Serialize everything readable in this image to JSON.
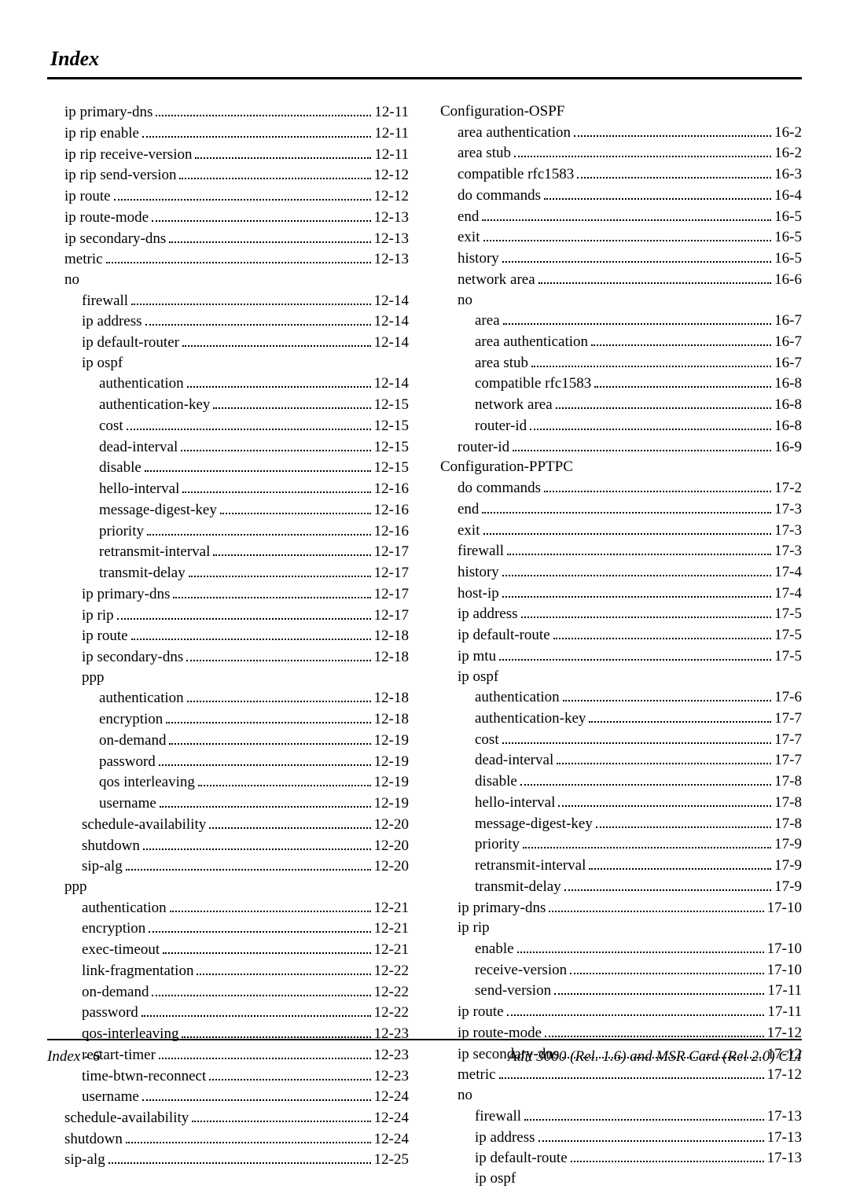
{
  "title": "Index",
  "footer_left": "Index - 6",
  "footer_right": "Adit 3000 (Rel. 1.6) and MSR Card (Rel 2.0) CLI",
  "left": [
    {
      "label": "ip primary-dns",
      "page": "12-11",
      "indent": 1,
      "heading": false
    },
    {
      "label": "ip rip enable",
      "page": "12-11",
      "indent": 1,
      "heading": false
    },
    {
      "label": "ip rip receive-version",
      "page": "12-11",
      "indent": 1,
      "heading": false
    },
    {
      "label": "ip rip send-version",
      "page": "12-12",
      "indent": 1,
      "heading": false
    },
    {
      "label": "ip route",
      "page": "12-12",
      "indent": 1,
      "heading": false
    },
    {
      "label": "ip route-mode",
      "page": "12-13",
      "indent": 1,
      "heading": false
    },
    {
      "label": "ip secondary-dns",
      "page": "12-13",
      "indent": 1,
      "heading": false
    },
    {
      "label": "metric",
      "page": "12-13",
      "indent": 1,
      "heading": false
    },
    {
      "label": "no",
      "page": "",
      "indent": 1,
      "heading": true
    },
    {
      "label": "firewall",
      "page": "12-14",
      "indent": 2,
      "heading": false
    },
    {
      "label": "ip address",
      "page": "12-14",
      "indent": 2,
      "heading": false
    },
    {
      "label": "ip default-router",
      "page": "12-14",
      "indent": 2,
      "heading": false
    },
    {
      "label": "ip ospf",
      "page": "",
      "indent": 2,
      "heading": true
    },
    {
      "label": "authentication",
      "page": "12-14",
      "indent": 3,
      "heading": false
    },
    {
      "label": "authentication-key",
      "page": "12-15",
      "indent": 3,
      "heading": false
    },
    {
      "label": "cost",
      "page": "12-15",
      "indent": 3,
      "heading": false
    },
    {
      "label": "dead-interval",
      "page": "12-15",
      "indent": 3,
      "heading": false
    },
    {
      "label": "disable",
      "page": "12-15",
      "indent": 3,
      "heading": false
    },
    {
      "label": "hello-interval",
      "page": "12-16",
      "indent": 3,
      "heading": false
    },
    {
      "label": "message-digest-key",
      "page": "12-16",
      "indent": 3,
      "heading": false
    },
    {
      "label": "priority",
      "page": "12-16",
      "indent": 3,
      "heading": false
    },
    {
      "label": "retransmit-interval",
      "page": "12-17",
      "indent": 3,
      "heading": false
    },
    {
      "label": "transmit-delay",
      "page": "12-17",
      "indent": 3,
      "heading": false
    },
    {
      "label": "ip primary-dns",
      "page": "12-17",
      "indent": 2,
      "heading": false
    },
    {
      "label": "ip rip",
      "page": "12-17",
      "indent": 2,
      "heading": false
    },
    {
      "label": "ip route",
      "page": "12-18",
      "indent": 2,
      "heading": false
    },
    {
      "label": "ip secondary-dns",
      "page": "12-18",
      "indent": 2,
      "heading": false
    },
    {
      "label": "ppp",
      "page": "",
      "indent": 2,
      "heading": true
    },
    {
      "label": "authentication",
      "page": "12-18",
      "indent": 3,
      "heading": false
    },
    {
      "label": "encryption",
      "page": "12-18",
      "indent": 3,
      "heading": false
    },
    {
      "label": "on-demand",
      "page": "12-19",
      "indent": 3,
      "heading": false
    },
    {
      "label": "password",
      "page": "12-19",
      "indent": 3,
      "heading": false
    },
    {
      "label": "qos interleaving",
      "page": "12-19",
      "indent": 3,
      "heading": false
    },
    {
      "label": "username",
      "page": "12-19",
      "indent": 3,
      "heading": false
    },
    {
      "label": "schedule-availability",
      "page": "12-20",
      "indent": 2,
      "heading": false
    },
    {
      "label": "shutdown",
      "page": "12-20",
      "indent": 2,
      "heading": false
    },
    {
      "label": "sip-alg",
      "page": "12-20",
      "indent": 2,
      "heading": false
    },
    {
      "label": "ppp",
      "page": "",
      "indent": 1,
      "heading": true
    },
    {
      "label": "authentication",
      "page": "12-21",
      "indent": 2,
      "heading": false
    },
    {
      "label": "encryption",
      "page": "12-21",
      "indent": 2,
      "heading": false
    },
    {
      "label": "exec-timeout",
      "page": "12-21",
      "indent": 2,
      "heading": false
    },
    {
      "label": "link-fragmentation",
      "page": "12-22",
      "indent": 2,
      "heading": false
    },
    {
      "label": "on-demand",
      "page": "12-22",
      "indent": 2,
      "heading": false
    },
    {
      "label": "password",
      "page": "12-22",
      "indent": 2,
      "heading": false
    },
    {
      "label": "qos-interleaving",
      "page": "12-23",
      "indent": 2,
      "heading": false
    },
    {
      "label": "restart-timer",
      "page": "12-23",
      "indent": 2,
      "heading": false
    },
    {
      "label": "time-btwn-reconnect",
      "page": "12-23",
      "indent": 2,
      "heading": false
    },
    {
      "label": "username",
      "page": "12-24",
      "indent": 2,
      "heading": false
    },
    {
      "label": "schedule-availability",
      "page": "12-24",
      "indent": 1,
      "heading": false
    },
    {
      "label": "shutdown",
      "page": "12-24",
      "indent": 1,
      "heading": false
    },
    {
      "label": "sip-alg",
      "page": "12-25",
      "indent": 1,
      "heading": false
    }
  ],
  "right": [
    {
      "label": "Configuration-OSPF",
      "page": "",
      "indent": 0,
      "heading": true
    },
    {
      "label": "area authentication",
      "page": "16-2",
      "indent": 1,
      "heading": false
    },
    {
      "label": "area stub",
      "page": "16-2",
      "indent": 1,
      "heading": false
    },
    {
      "label": "compatible rfc1583",
      "page": "16-3",
      "indent": 1,
      "heading": false
    },
    {
      "label": "do commands",
      "page": "16-4",
      "indent": 1,
      "heading": false
    },
    {
      "label": "end",
      "page": "16-5",
      "indent": 1,
      "heading": false
    },
    {
      "label": "exit",
      "page": "16-5",
      "indent": 1,
      "heading": false
    },
    {
      "label": "history",
      "page": "16-5",
      "indent": 1,
      "heading": false
    },
    {
      "label": "network area",
      "page": "16-6",
      "indent": 1,
      "heading": false
    },
    {
      "label": "no",
      "page": "",
      "indent": 1,
      "heading": true
    },
    {
      "label": "area",
      "page": "16-7",
      "indent": 2,
      "heading": false
    },
    {
      "label": "area authentication",
      "page": "16-7",
      "indent": 2,
      "heading": false
    },
    {
      "label": "area stub",
      "page": "16-7",
      "indent": 2,
      "heading": false
    },
    {
      "label": "compatible rfc1583",
      "page": "16-8",
      "indent": 2,
      "heading": false
    },
    {
      "label": "network area",
      "page": "16-8",
      "indent": 2,
      "heading": false
    },
    {
      "label": "router-id",
      "page": "16-8",
      "indent": 2,
      "heading": false
    },
    {
      "label": "router-id",
      "page": "16-9",
      "indent": 1,
      "heading": false
    },
    {
      "label": "Configuration-PPTPC",
      "page": "",
      "indent": 0,
      "heading": true
    },
    {
      "label": "do commands",
      "page": "17-2",
      "indent": 1,
      "heading": false
    },
    {
      "label": "end",
      "page": "17-3",
      "indent": 1,
      "heading": false
    },
    {
      "label": "exit",
      "page": "17-3",
      "indent": 1,
      "heading": false
    },
    {
      "label": "firewall",
      "page": "17-3",
      "indent": 1,
      "heading": false
    },
    {
      "label": "history",
      "page": "17-4",
      "indent": 1,
      "heading": false
    },
    {
      "label": "host-ip",
      "page": "17-4",
      "indent": 1,
      "heading": false
    },
    {
      "label": "ip address",
      "page": "17-5",
      "indent": 1,
      "heading": false
    },
    {
      "label": "ip default-route",
      "page": "17-5",
      "indent": 1,
      "heading": false
    },
    {
      "label": "ip mtu",
      "page": "17-5",
      "indent": 1,
      "heading": false
    },
    {
      "label": "ip ospf",
      "page": "",
      "indent": 1,
      "heading": true
    },
    {
      "label": "authentication",
      "page": "17-6",
      "indent": 2,
      "heading": false
    },
    {
      "label": "authentication-key",
      "page": "17-7",
      "indent": 2,
      "heading": false
    },
    {
      "label": "cost",
      "page": "17-7",
      "indent": 2,
      "heading": false
    },
    {
      "label": "dead-interval",
      "page": "17-7",
      "indent": 2,
      "heading": false
    },
    {
      "label": "disable",
      "page": "17-8",
      "indent": 2,
      "heading": false
    },
    {
      "label": "hello-interval",
      "page": "17-8",
      "indent": 2,
      "heading": false
    },
    {
      "label": "message-digest-key",
      "page": "17-8",
      "indent": 2,
      "heading": false
    },
    {
      "label": "priority",
      "page": "17-9",
      "indent": 2,
      "heading": false
    },
    {
      "label": "retransmit-interval",
      "page": "17-9",
      "indent": 2,
      "heading": false
    },
    {
      "label": "transmit-delay",
      "page": "17-9",
      "indent": 2,
      "heading": false
    },
    {
      "label": "ip primary-dns",
      "page": "17-10",
      "indent": 1,
      "heading": false
    },
    {
      "label": "ip rip",
      "page": "",
      "indent": 1,
      "heading": true
    },
    {
      "label": "enable",
      "page": "17-10",
      "indent": 2,
      "heading": false
    },
    {
      "label": "receive-version",
      "page": "17-10",
      "indent": 2,
      "heading": false
    },
    {
      "label": "send-version",
      "page": "17-11",
      "indent": 2,
      "heading": false
    },
    {
      "label": "ip route",
      "page": "17-11",
      "indent": 1,
      "heading": false
    },
    {
      "label": "ip route-mode",
      "page": "17-12",
      "indent": 1,
      "heading": false
    },
    {
      "label": "ip secondary-dns",
      "page": "17-12",
      "indent": 1,
      "heading": false
    },
    {
      "label": "metric",
      "page": "17-12",
      "indent": 1,
      "heading": false
    },
    {
      "label": "no",
      "page": "",
      "indent": 1,
      "heading": true
    },
    {
      "label": "firewall",
      "page": "17-13",
      "indent": 2,
      "heading": false
    },
    {
      "label": "ip address",
      "page": "17-13",
      "indent": 2,
      "heading": false
    },
    {
      "label": "ip default-route",
      "page": "17-13",
      "indent": 2,
      "heading": false
    },
    {
      "label": "ip ospf",
      "page": "",
      "indent": 2,
      "heading": true
    }
  ]
}
